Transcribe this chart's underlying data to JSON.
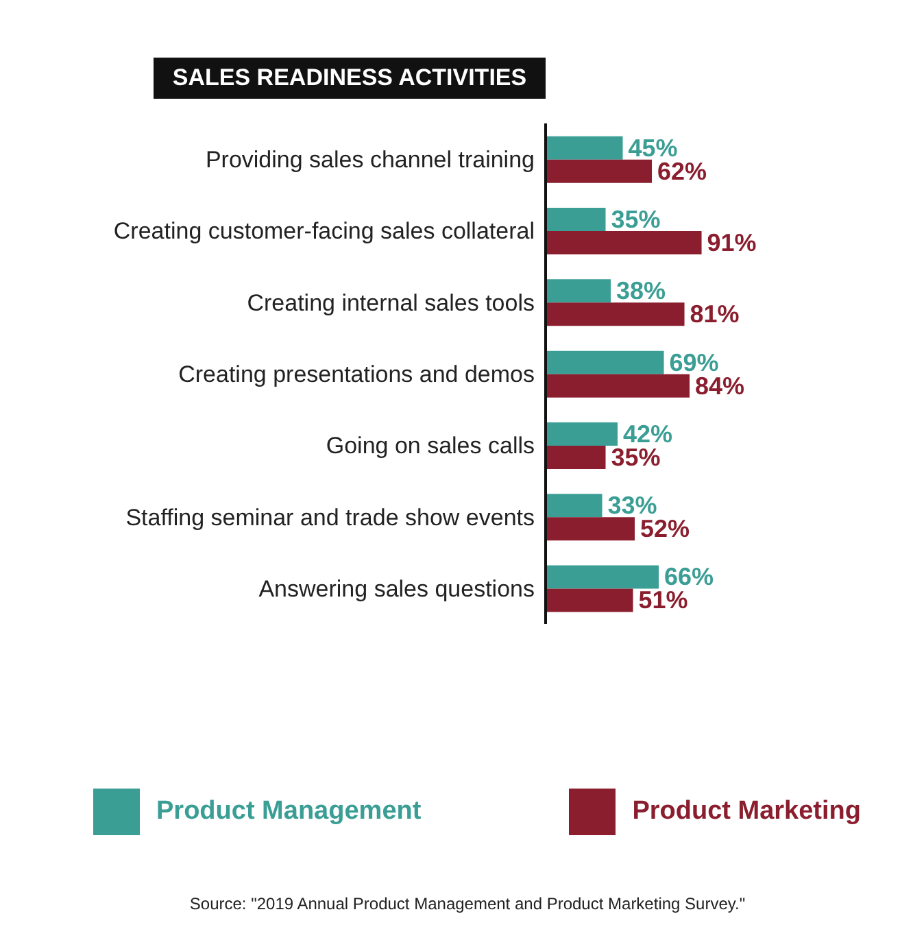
{
  "chart_data": {
    "type": "bar",
    "orientation": "horizontal",
    "title": "SALES READINESS ACTIVITIES",
    "categories": [
      "Providing sales channel training",
      "Creating customer-facing sales collateral",
      "Creating internal sales tools",
      "Creating presentations and demos",
      "Going on sales calls",
      "Staffing seminar and trade show events",
      "Answering sales questions"
    ],
    "series": [
      {
        "name": "Product Management",
        "color": "#3a9e95",
        "values": [
          45,
          35,
          38,
          69,
          42,
          33,
          66
        ],
        "value_labels": [
          "45%",
          "35%",
          "38%",
          "69%",
          "42%",
          "33%",
          "66%"
        ]
      },
      {
        "name": "Product Marketing",
        "color": "#8b1e2e",
        "values": [
          62,
          91,
          81,
          84,
          35,
          52,
          51
        ],
        "value_labels": [
          "62%",
          "91%",
          "81%",
          "84%",
          "35%",
          "52%",
          "51%"
        ]
      }
    ],
    "legend": "bottom",
    "grid": false,
    "annotations": [
      "Source: \"2019 Annual Product Management and Product Marketing Survey.\""
    ]
  }
}
